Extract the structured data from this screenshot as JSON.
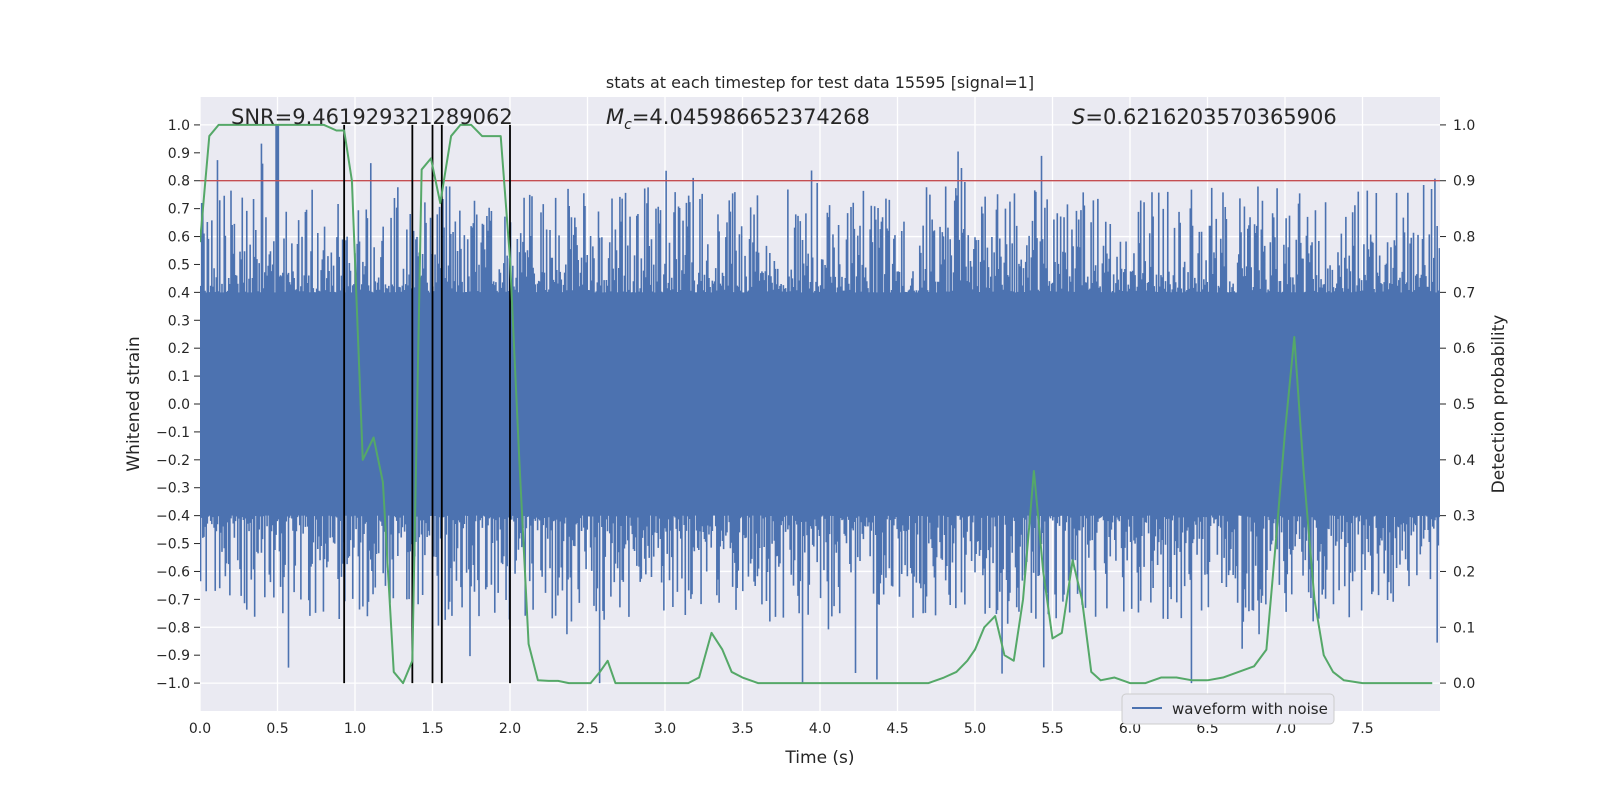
{
  "chart_data": {
    "type": "line",
    "title": "stats at each timestep for test data 15595 [signal=1]",
    "xlabel": "Time (s)",
    "ylabel": "Whitened strain",
    "y2label": "Detection probability",
    "xlim": [
      0.0,
      8.0
    ],
    "ylim": [
      -1.1,
      1.1
    ],
    "y2lim": [
      -0.05,
      1.05
    ],
    "xticks": [
      0.0,
      0.5,
      1.0,
      1.5,
      2.0,
      2.5,
      3.0,
      3.5,
      4.0,
      4.5,
      5.0,
      5.5,
      6.0,
      6.5,
      7.0,
      7.5
    ],
    "xtick_labels": [
      "0.0",
      "0.5",
      "1.0",
      "1.5",
      "2.0",
      "2.5",
      "3.0",
      "3.5",
      "4.0",
      "4.5",
      "5.0",
      "5.5",
      "6.0",
      "6.5",
      "7.0",
      "7.5"
    ],
    "yticks": [
      -1.0,
      -0.9,
      -0.8,
      -0.7,
      -0.6,
      -0.5,
      -0.4,
      -0.3,
      -0.2,
      -0.1,
      0.0,
      0.1,
      0.2,
      0.3,
      0.4,
      0.5,
      0.6,
      0.7,
      0.8,
      0.9,
      1.0
    ],
    "ytick_labels": [
      "−1.0",
      "−0.9",
      "−0.8",
      "−0.7",
      "−0.6",
      "−0.5",
      "−0.4",
      "−0.3",
      "−0.2",
      "−0.1",
      "0.0",
      "0.1",
      "0.2",
      "0.3",
      "0.4",
      "0.5",
      "0.6",
      "0.7",
      "0.8",
      "0.9",
      "1.0"
    ],
    "y2ticks": [
      0.0,
      0.1,
      0.2,
      0.3,
      0.4,
      0.5,
      0.6,
      0.7,
      0.8,
      0.9,
      1.0
    ],
    "y2tick_labels": [
      "0.0",
      "0.1",
      "0.2",
      "0.3",
      "0.4",
      "0.5",
      "0.6",
      "0.7",
      "0.8",
      "0.9",
      "1.0"
    ],
    "grid": true,
    "legend": {
      "location": "lower-right",
      "entries": [
        "waveform with noise"
      ]
    },
    "annotations": {
      "snr": "SNR=9.461929321289062",
      "mc_symbol": "M",
      "mc_subscript": "c",
      "mc_value": "=4.045986652374268",
      "s_symbol": "S",
      "s_value": "=0.6216203570365906"
    },
    "threshold": {
      "axis": "y2",
      "value": 0.9,
      "color": "#c44e52"
    },
    "event_markers": {
      "x": [
        0.93,
        1.37,
        1.5,
        1.56,
        2.0
      ],
      "y_range": [
        -1.0,
        1.0
      ],
      "color": "#000000"
    },
    "series": [
      {
        "name": "waveform with noise",
        "axis": "y",
        "color": "#4c72b0",
        "noise_model": {
          "samples": 1100,
          "seed": 15595,
          "core_range": [
            -0.4,
            0.4
          ],
          "spike_max": 1.0,
          "spike_min": -1.0
        }
      },
      {
        "name": "detection probability",
        "axis": "y2",
        "color": "#55a868",
        "x": [
          0.0,
          0.06,
          0.12,
          0.18,
          0.25,
          0.35,
          0.5,
          0.65,
          0.8,
          0.88,
          0.93,
          0.98,
          1.05,
          1.12,
          1.18,
          1.25,
          1.31,
          1.37,
          1.43,
          1.49,
          1.55,
          1.62,
          1.68,
          1.75,
          1.82,
          1.88,
          1.94,
          2.0,
          2.06,
          2.12,
          2.18,
          2.25,
          2.31,
          2.38,
          2.45,
          2.52,
          2.58,
          2.63,
          2.68,
          2.75,
          2.85,
          2.95,
          3.05,
          3.15,
          3.22,
          3.3,
          3.37,
          3.43,
          3.5,
          3.6,
          3.7,
          3.85,
          4.0,
          4.2,
          4.4,
          4.6,
          4.7,
          4.8,
          4.88,
          4.95,
          5.0,
          5.06,
          5.13,
          5.19,
          5.25,
          5.31,
          5.38,
          5.44,
          5.5,
          5.56,
          5.63,
          5.69,
          5.75,
          5.81,
          5.9,
          6.0,
          6.1,
          6.2,
          6.3,
          6.4,
          6.5,
          6.6,
          6.7,
          6.8,
          6.88,
          6.94,
          7.0,
          7.06,
          7.12,
          7.19,
          7.25,
          7.31,
          7.38,
          7.5,
          7.7,
          7.95
        ],
        "y": [
          0.79,
          0.98,
          1.0,
          1.0,
          1.0,
          1.0,
          1.0,
          1.0,
          1.0,
          0.99,
          0.99,
          0.9,
          0.4,
          0.44,
          0.36,
          0.02,
          0.0,
          0.04,
          0.92,
          0.94,
          0.86,
          0.98,
          1.0,
          1.0,
          0.98,
          0.98,
          0.98,
          0.76,
          0.4,
          0.07,
          0.005,
          0.004,
          0.004,
          0.0,
          0.0,
          0.0,
          0.02,
          0.04,
          0.0,
          0.0,
          0.0,
          0.0,
          0.0,
          0.0,
          0.01,
          0.09,
          0.06,
          0.02,
          0.01,
          0.0,
          0.0,
          0.0,
          0.0,
          0.0,
          0.0,
          0.0,
          0.0,
          0.01,
          0.02,
          0.04,
          0.06,
          0.1,
          0.12,
          0.05,
          0.04,
          0.15,
          0.38,
          0.2,
          0.08,
          0.09,
          0.22,
          0.15,
          0.02,
          0.005,
          0.01,
          0.0,
          0.0,
          0.01,
          0.01,
          0.005,
          0.005,
          0.01,
          0.02,
          0.03,
          0.06,
          0.25,
          0.45,
          0.62,
          0.38,
          0.15,
          0.05,
          0.02,
          0.005,
          0.0,
          0.0,
          0.0
        ]
      }
    ]
  }
}
